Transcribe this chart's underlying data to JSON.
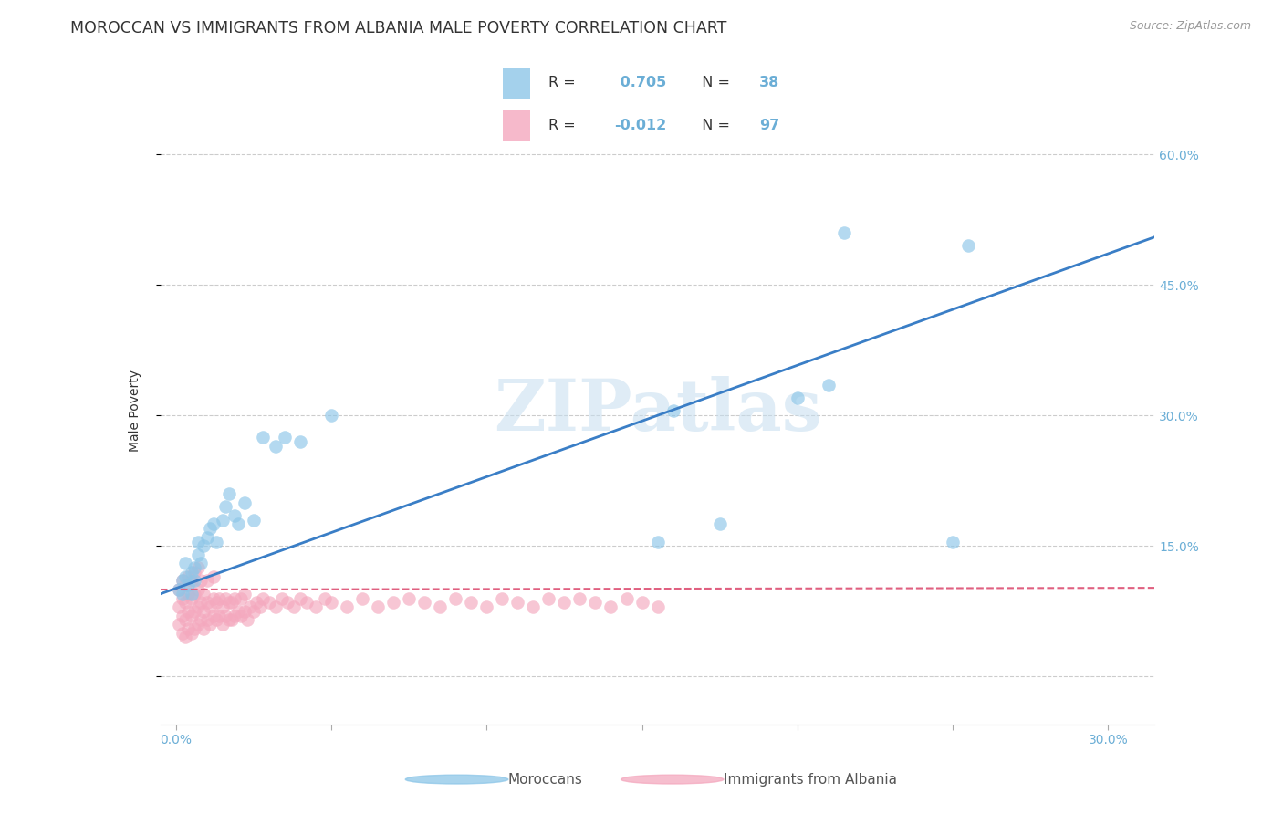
{
  "title": "MOROCCAN VS IMMIGRANTS FROM ALBANIA MALE POVERTY CORRELATION CHART",
  "source": "Source: ZipAtlas.com",
  "ylabel_label": "Male Poverty",
  "xlim": [
    -0.005,
    0.315
  ],
  "ylim": [
    -0.055,
    0.665
  ],
  "r_moroccan": 0.705,
  "n_moroccan": 38,
  "r_albania": -0.012,
  "n_albania": 97,
  "color_moroccan": "#8dc6e8",
  "color_albania": "#f4a8be",
  "trendline_moroccan": "#3a7ec6",
  "trendline_albania": "#e06080",
  "watermark": "ZIPatlas",
  "legend_label_moroccan": "Moroccans",
  "legend_label_albania": "Immigrants from Albania",
  "background_color": "#ffffff",
  "grid_color": "#cccccc",
  "title_fontsize": 12.5,
  "axis_label_fontsize": 10,
  "tick_fontsize": 10,
  "tick_color": "#6baed6",
  "text_color": "#333333",
  "x_tick_positions": [
    0.0,
    0.05,
    0.1,
    0.15,
    0.2,
    0.25,
    0.3
  ],
  "x_tick_labels": [
    "0.0%",
    "",
    "",
    "",
    "",
    "",
    "30.0%"
  ],
  "y_tick_positions": [
    0.0,
    0.15,
    0.3,
    0.45,
    0.6
  ],
  "y_tick_labels": [
    "",
    "15.0%",
    "30.0%",
    "45.0%",
    "60.0%"
  ],
  "moroccan_x": [
    0.001,
    0.002,
    0.002,
    0.003,
    0.003,
    0.004,
    0.005,
    0.005,
    0.006,
    0.006,
    0.007,
    0.007,
    0.008,
    0.009,
    0.01,
    0.011,
    0.012,
    0.013,
    0.015,
    0.016,
    0.017,
    0.019,
    0.02,
    0.022,
    0.025,
    0.028,
    0.032,
    0.035,
    0.04,
    0.05,
    0.155,
    0.16,
    0.175,
    0.2,
    0.21,
    0.215,
    0.25,
    0.255
  ],
  "moroccan_y": [
    0.1,
    0.11,
    0.095,
    0.115,
    0.13,
    0.105,
    0.12,
    0.095,
    0.11,
    0.125,
    0.14,
    0.155,
    0.13,
    0.15,
    0.16,
    0.17,
    0.175,
    0.155,
    0.18,
    0.195,
    0.21,
    0.185,
    0.175,
    0.2,
    0.18,
    0.275,
    0.265,
    0.275,
    0.27,
    0.3,
    0.155,
    0.305,
    0.175,
    0.32,
    0.335,
    0.51,
    0.155,
    0.495
  ],
  "albania_x": [
    0.001,
    0.001,
    0.001,
    0.002,
    0.002,
    0.002,
    0.002,
    0.003,
    0.003,
    0.003,
    0.003,
    0.004,
    0.004,
    0.004,
    0.004,
    0.005,
    0.005,
    0.005,
    0.005,
    0.006,
    0.006,
    0.006,
    0.006,
    0.007,
    0.007,
    0.007,
    0.007,
    0.008,
    0.008,
    0.008,
    0.009,
    0.009,
    0.009,
    0.01,
    0.01,
    0.01,
    0.011,
    0.011,
    0.012,
    0.012,
    0.012,
    0.013,
    0.013,
    0.014,
    0.014,
    0.015,
    0.015,
    0.016,
    0.016,
    0.017,
    0.017,
    0.018,
    0.018,
    0.019,
    0.019,
    0.02,
    0.021,
    0.021,
    0.022,
    0.022,
    0.023,
    0.024,
    0.025,
    0.026,
    0.027,
    0.028,
    0.03,
    0.032,
    0.034,
    0.036,
    0.038,
    0.04,
    0.042,
    0.045,
    0.048,
    0.05,
    0.055,
    0.06,
    0.065,
    0.07,
    0.075,
    0.08,
    0.085,
    0.09,
    0.095,
    0.1,
    0.105,
    0.11,
    0.115,
    0.12,
    0.125,
    0.13,
    0.135,
    0.14,
    0.145,
    0.15,
    0.155
  ],
  "albania_y": [
    0.08,
    0.06,
    0.1,
    0.05,
    0.07,
    0.09,
    0.11,
    0.045,
    0.065,
    0.085,
    0.105,
    0.055,
    0.075,
    0.095,
    0.115,
    0.05,
    0.07,
    0.09,
    0.11,
    0.055,
    0.075,
    0.095,
    0.12,
    0.06,
    0.08,
    0.1,
    0.125,
    0.065,
    0.085,
    0.11,
    0.055,
    0.075,
    0.095,
    0.065,
    0.085,
    0.11,
    0.06,
    0.08,
    0.07,
    0.09,
    0.115,
    0.065,
    0.085,
    0.07,
    0.09,
    0.06,
    0.08,
    0.07,
    0.09,
    0.065,
    0.085,
    0.065,
    0.085,
    0.07,
    0.09,
    0.075,
    0.07,
    0.09,
    0.075,
    0.095,
    0.065,
    0.08,
    0.075,
    0.085,
    0.08,
    0.09,
    0.085,
    0.08,
    0.09,
    0.085,
    0.08,
    0.09,
    0.085,
    0.08,
    0.09,
    0.085,
    0.08,
    0.09,
    0.08,
    0.085,
    0.09,
    0.085,
    0.08,
    0.09,
    0.085,
    0.08,
    0.09,
    0.085,
    0.08,
    0.09,
    0.085,
    0.09,
    0.085,
    0.08,
    0.09,
    0.085,
    0.08
  ],
  "trend_moroccan_x0": -0.005,
  "trend_moroccan_x1": 0.315,
  "trend_moroccan_y0": 0.095,
  "trend_moroccan_y1": 0.505,
  "trend_albania_x0": -0.005,
  "trend_albania_x1": 0.315,
  "trend_albania_y0": 0.1,
  "trend_albania_y1": 0.102
}
